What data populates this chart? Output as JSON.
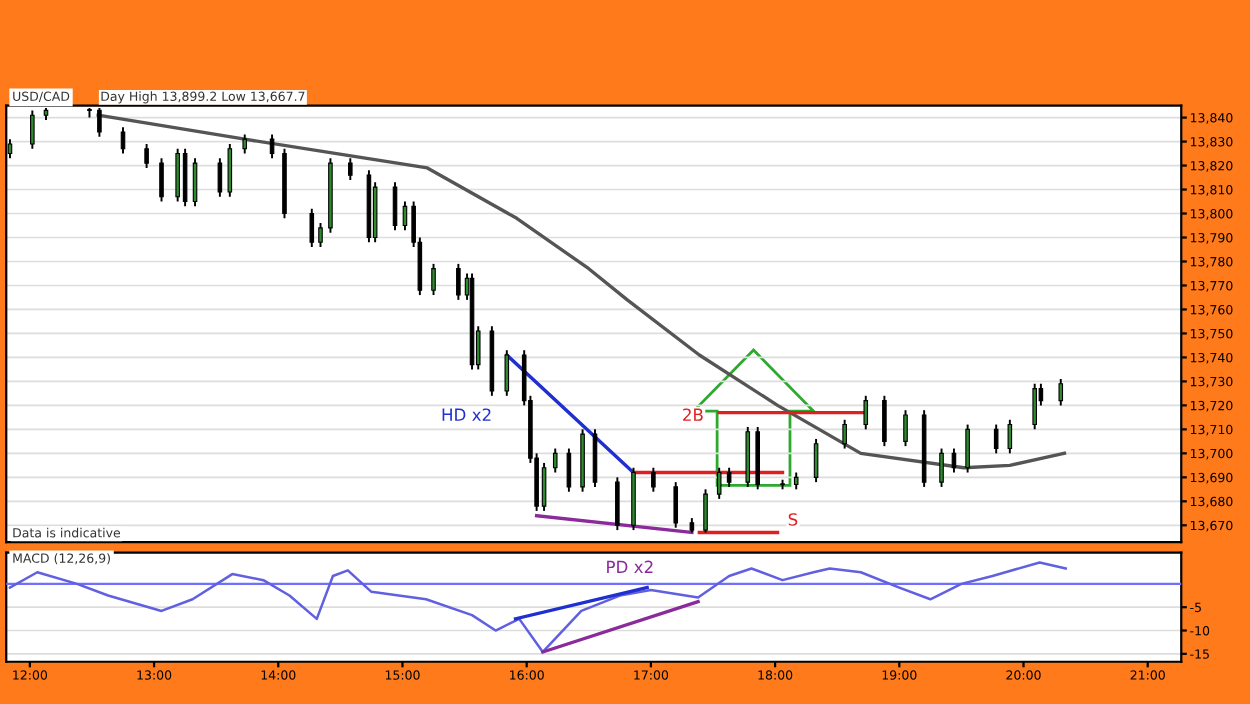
{
  "chart_data": [
    {
      "type": "candlestick",
      "title": "USD/CAD",
      "x": [
        11.84,
        12.02,
        12.13,
        12.48,
        12.56,
        12.75,
        12.94,
        13.06,
        13.19,
        13.25,
        13.33,
        13.53,
        13.61,
        13.73,
        13.95,
        14.05,
        14.27,
        14.34,
        14.42,
        14.58,
        14.73,
        14.78,
        14.94,
        15.02,
        15.09,
        15.14,
        15.25,
        15.45,
        15.52,
        15.56,
        15.61,
        15.72,
        15.84,
        15.98,
        16.03,
        16.08,
        16.14,
        16.23,
        16.34,
        16.45,
        16.55,
        16.73,
        16.86,
        17.02,
        17.2,
        17.33,
        17.44,
        17.55,
        17.63,
        17.78,
        17.86,
        18.06,
        18.17,
        18.33,
        18.56,
        18.73,
        18.88,
        19.05,
        19.2,
        19.34,
        19.44,
        19.55,
        19.78,
        19.89,
        20.09,
        20.14,
        20.3
      ],
      "ohlc": [
        [
          13825,
          13831,
          13823,
          13829
        ],
        [
          13829,
          13843,
          13827,
          13841
        ],
        [
          13841,
          13844,
          13839,
          13843
        ],
        [
          13843,
          13844,
          13840,
          13843
        ],
        [
          13843,
          13844,
          13832,
          13834
        ],
        [
          13834,
          13836,
          13825,
          13827
        ],
        [
          13827,
          13829,
          13819,
          13821
        ],
        [
          13821,
          13823,
          13805,
          13807
        ],
        [
          13807,
          13827,
          13805,
          13825
        ],
        [
          13825,
          13827,
          13803,
          13805
        ],
        [
          13805,
          13823,
          13803,
          13821
        ],
        [
          13821,
          13823,
          13807,
          13809
        ],
        [
          13809,
          13829,
          13807,
          13827
        ],
        [
          13827,
          13833,
          13825,
          13831
        ],
        [
          13831,
          13833,
          13823,
          13825
        ],
        [
          13825,
          13827,
          13798,
          13800
        ],
        [
          13800,
          13802,
          13786,
          13788
        ],
        [
          13788,
          13796,
          13786,
          13794
        ],
        [
          13794,
          13823,
          13792,
          13821
        ],
        [
          13821,
          13823,
          13814,
          13816
        ],
        [
          13816,
          13818,
          13788,
          13790
        ],
        [
          13790,
          13813,
          13788,
          13811
        ],
        [
          13811,
          13813,
          13793,
          13795
        ],
        [
          13795,
          13805,
          13793,
          13803
        ],
        [
          13803,
          13805,
          13786,
          13788
        ],
        [
          13788,
          13790,
          13766,
          13768
        ],
        [
          13768,
          13779,
          13766,
          13777
        ],
        [
          13777,
          13779,
          13764,
          13766
        ],
        [
          13766,
          13775,
          13764,
          13773
        ],
        [
          13773,
          13775,
          13735,
          13737
        ],
        [
          13737,
          13753,
          13735,
          13751
        ],
        [
          13751,
          13753,
          13724,
          13726
        ],
        [
          13726,
          13743,
          13724,
          13741
        ],
        [
          13741,
          13743,
          13720,
          13722
        ],
        [
          13722,
          13724,
          13696,
          13698
        ],
        [
          13698,
          13700,
          13676,
          13678
        ],
        [
          13678,
          13696,
          13676,
          13694
        ],
        [
          13694,
          13702,
          13692,
          13700
        ],
        [
          13700,
          13702,
          13684,
          13686
        ],
        [
          13686,
          13710,
          13684,
          13708
        ],
        [
          13708,
          13710,
          13686,
          13688
        ],
        [
          13688,
          13690,
          13668,
          13670
        ],
        [
          13670,
          13694,
          13668,
          13692
        ],
        [
          13692,
          13694,
          13684,
          13686
        ],
        [
          13686,
          13688,
          13669,
          13671
        ],
        [
          13671,
          13673,
          13667,
          13668
        ],
        [
          13668,
          13685,
          13667,
          13683
        ],
        [
          13683,
          13694,
          13681,
          13692
        ],
        [
          13692,
          13694,
          13686,
          13688
        ],
        [
          13688,
          13711,
          13686,
          13709
        ],
        [
          13709,
          13711,
          13685,
          13687
        ],
        [
          13687,
          13689,
          13685,
          13687
        ],
        [
          13687,
          13692,
          13685,
          13690
        ],
        [
          13690,
          13706,
          13688,
          13704
        ],
        [
          13704,
          13714,
          13702,
          13712
        ],
        [
          13712,
          13724,
          13710,
          13722
        ],
        [
          13722,
          13724,
          13703,
          13705
        ],
        [
          13705,
          13718,
          13703,
          13716
        ],
        [
          13716,
          13718,
          13686,
          13688
        ],
        [
          13688,
          13702,
          13686,
          13700
        ],
        [
          13700,
          13702,
          13692,
          13694
        ],
        [
          13694,
          13712,
          13692,
          13710
        ],
        [
          13710,
          13712,
          13700,
          13702
        ],
        [
          13702,
          13714,
          13700,
          13712
        ],
        [
          13712,
          13729,
          13710,
          13727
        ],
        [
          13727,
          13729,
          13720,
          13722
        ],
        [
          13722,
          13731,
          13720,
          13729
        ]
      ],
      "color": "#000000",
      "series": [
        {
          "type": "line",
          "color": "#555555",
          "x": [
            12.55,
            13.73,
            14.47,
            15.2,
            15.92,
            16.5,
            16.81,
            17.39,
            18.02,
            18.69,
            19.52,
            19.89,
            20.33
          ],
          "values": [
            13841,
            13831,
            13825,
            13819,
            13798,
            13777,
            13764,
            13741,
            13720,
            13700,
            13694,
            13695,
            13700
          ]
        },
        {
          "type": "line",
          "color": "#1f2fd0",
          "x": [
            15.84,
            16.86
          ],
          "values": [
            13741,
            13692
          ]
        },
        {
          "type": "line",
          "color": "#8b2a9b",
          "x": [
            16.08,
            17.33
          ],
          "values": [
            13674,
            13667
          ]
        },
        {
          "type": "line",
          "color": "#e02020",
          "x": [
            16.86,
            18.06
          ],
          "values": [
            13692,
            13692
          ]
        },
        {
          "type": "line",
          "color": "#e02020",
          "x": [
            17.39,
            18.02
          ],
          "values": [
            13667,
            13667
          ]
        },
        {
          "type": "line",
          "color": "#e02020",
          "x": [
            17.55,
            18.73
          ],
          "values": [
            13717,
            13717
          ]
        }
      ],
      "xlim": [
        11.81,
        21.27
      ],
      "ylim": [
        13663,
        13845
      ],
      "yticks": [
        {
          "value": 13670,
          "label": "13,670"
        },
        {
          "value": 13680,
          "label": "13,680"
        },
        {
          "value": 13690,
          "label": "13,690"
        },
        {
          "value": 13700,
          "label": "13,700"
        },
        {
          "value": 13710,
          "label": "13,710"
        },
        {
          "value": 13720,
          "label": "13,720"
        },
        {
          "value": 13730,
          "label": "13,730"
        },
        {
          "value": 13740,
          "label": "13,740"
        },
        {
          "value": 13750,
          "label": "13,750"
        },
        {
          "value": 13760,
          "label": "13,760"
        },
        {
          "value": 13770,
          "label": "13,770"
        },
        {
          "value": 13780,
          "label": "13,780"
        },
        {
          "value": 13790,
          "label": "13,790"
        },
        {
          "value": 13800,
          "label": "13,800"
        },
        {
          "value": 13810,
          "label": "13,810"
        },
        {
          "value": 13820,
          "label": "13,820"
        },
        {
          "value": 13830,
          "label": "13,830"
        },
        {
          "value": 13840,
          "label": "13,840"
        }
      ],
      "tick_labels": "y",
      "grid": "y",
      "annotations": [
        "Day High 13,899.2 Low 13,667.7",
        "Data is indicative",
        "HD x2",
        "2B",
        "S"
      ]
    },
    {
      "type": "line",
      "title": "MACD (12,26,9)",
      "x": [
        11.84,
        12.06,
        12.38,
        12.63,
        13.06,
        13.31,
        13.63,
        13.88,
        14.09,
        14.31,
        14.44,
        14.56,
        14.75,
        15.19,
        15.56,
        15.75,
        15.94,
        16.13,
        16.44,
        16.75,
        17.0,
        17.19,
        17.38,
        17.63,
        17.81,
        18.06,
        18.31,
        18.44,
        18.69,
        19.0,
        19.25,
        19.5,
        19.75,
        20.13,
        20.34
      ],
      "series": [
        {
          "color": "#6060e0",
          "values": [
            -0.8,
            2.5,
            0,
            -2.5,
            -5.8,
            -3.3,
            2.1,
            0.8,
            -2.5,
            -7.5,
            1.7,
            2.9,
            -1.7,
            -3.3,
            -6.7,
            -10,
            -7.5,
            -14.6,
            -5.8,
            -2.5,
            -1.3,
            -2.1,
            -2.9,
            1.7,
            3.3,
            0.8,
            2.5,
            3.3,
            2.5,
            -0.8,
            -3.3,
            0,
            1.7,
            4.6,
            3.3
          ]
        },
        {
          "color": "#1f2fd0",
          "x": [
            15.91,
            16.97
          ],
          "values": [
            -7.5,
            -0.8
          ]
        },
        {
          "color": "#8b2a9b",
          "x": [
            16.13,
            17.38
          ],
          "values": [
            -14.6,
            -3.8
          ]
        }
      ],
      "ref_lines": [
        {
          "axis": "y",
          "value": 0,
          "color": "#7070ff"
        }
      ],
      "xlim": [
        11.81,
        21.27
      ],
      "ylim": [
        -16.7,
        6.7
      ],
      "xticks": [
        {
          "value": 12,
          "label": "12:00"
        },
        {
          "value": 13,
          "label": "13:00"
        },
        {
          "value": 14,
          "label": "14:00"
        },
        {
          "value": 15,
          "label": "15:00"
        },
        {
          "value": 16,
          "label": "16:00"
        },
        {
          "value": 17,
          "label": "17:00"
        },
        {
          "value": 18,
          "label": "18:00"
        },
        {
          "value": 19,
          "label": "19:00"
        },
        {
          "value": 20,
          "label": "20:00"
        },
        {
          "value": 21,
          "label": "21:00"
        }
      ],
      "yticks": [
        -15,
        -10,
        -5
      ],
      "grid": "y",
      "annotations": [
        "PD x2"
      ]
    }
  ]
}
